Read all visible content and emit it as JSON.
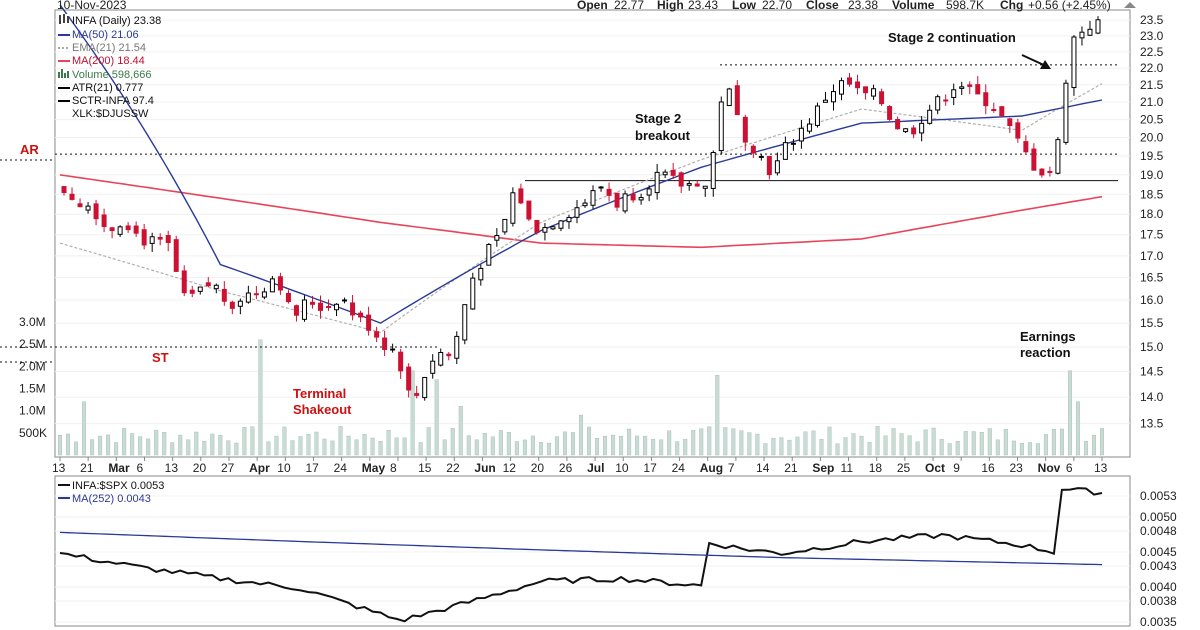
{
  "header": {
    "date": "10-Nov-2023",
    "open_label": "Open",
    "open": "22.77",
    "high_label": "High",
    "high": "23.43",
    "low_label": "Low",
    "low": "22.70",
    "close_label": "Close",
    "close": "23.38",
    "volume_label": "Volume",
    "volume": "598.7K",
    "chg_label": "Chg",
    "chg": "+0.56 (+2.45%)"
  },
  "legend": {
    "symbol": "INFA (Daily) 23.38",
    "ma50": "MA(50) 21.06",
    "ema21": "EMA(21) 21.54",
    "ma200": "MA(200) 18.44",
    "volume": "Volume 598,666",
    "atr": "ATR(21) 0.777",
    "sctr": "SCTR-INFA 97.4",
    "xlk": "XLK:$DJUSSW"
  },
  "lower_legend": {
    "ratio": "INFA:$SPX 0.0053",
    "ma252": "MA(252) 0.0043"
  },
  "annotations": {
    "ar": "AR",
    "st": "ST",
    "terminal_1": "Terminal",
    "terminal_2": "Shakeout",
    "breakout_1": "Stage 2",
    "breakout_2": "breakout",
    "continuation": "Stage 2 continuation",
    "earnings_1": "Earnings",
    "earnings_2": "reaction"
  },
  "colors": {
    "up": "#000000",
    "down": "#cc1133",
    "ma50": "#2a3a9a",
    "ema21": "#b0b0b0",
    "ma200": "#e8455a",
    "volume": "#c8dcd4",
    "ratio": "#111111",
    "ma252": "#2a3a9a",
    "annotation": "#cc1111"
  },
  "chart_data": [
    {
      "type": "candlestick",
      "ticker": "INFA",
      "y_ticks": [
        "23.5",
        "23.0",
        "22.5",
        "22.0",
        "21.5",
        "21.0",
        "20.5",
        "20.0",
        "19.5",
        "19.0",
        "18.5",
        "18.0",
        "17.5",
        "17.0",
        "16.5",
        "16.0",
        "15.5",
        "15.0",
        "14.5",
        "14.0",
        "13.5"
      ],
      "volume_ticks": [
        "3.0M",
        "2.5M",
        "2.0M",
        "1.5M",
        "1.0M",
        "500K"
      ],
      "x_ticks": [
        "13",
        "21",
        "Mar",
        "6",
        "13",
        "20",
        "27",
        "Apr",
        "10",
        "17",
        "24",
        "May",
        "8",
        "15",
        "22",
        "Jun",
        "12",
        "20",
        "26",
        "Jul",
        "10",
        "17",
        "24",
        "Aug",
        "7",
        "14",
        "21",
        "Sep",
        "11",
        "18",
        "25",
        "Oct",
        "9",
        "16",
        "23",
        "Nov",
        "6",
        "13"
      ],
      "log_scale": true,
      "ylim": [
        13.2,
        23.7
      ],
      "horizontal_levels": [
        {
          "value": 22.1,
          "style": "dotted"
        },
        {
          "value": 19.55,
          "style": "dotted"
        },
        {
          "value": 18.85,
          "style": "solid"
        },
        {
          "value": 15.0,
          "style": "dotted"
        }
      ],
      "price_path": [
        [
          0,
          18.7
        ],
        [
          5,
          18.3
        ],
        [
          8,
          18.2
        ],
        [
          12,
          17.6
        ],
        [
          16,
          17.9
        ],
        [
          20,
          17.4
        ],
        [
          24,
          17.3
        ],
        [
          28,
          17.2
        ],
        [
          30,
          16.0
        ],
        [
          34,
          16.1
        ],
        [
          38,
          16.4
        ],
        [
          42,
          15.9
        ],
        [
          46,
          16.1
        ],
        [
          50,
          16.2
        ],
        [
          54,
          16.6
        ],
        [
          58,
          15.6
        ],
        [
          62,
          16.0
        ],
        [
          66,
          15.8
        ],
        [
          70,
          16.1
        ],
        [
          74,
          15.6
        ],
        [
          78,
          15.4
        ],
        [
          80,
          15.1
        ],
        [
          84,
          14.9
        ],
        [
          88,
          13.8
        ],
        [
          90,
          14.3
        ],
        [
          94,
          14.9
        ],
        [
          98,
          14.8
        ],
        [
          100,
          15.6
        ],
        [
          103,
          16.5
        ],
        [
          106,
          17.0
        ],
        [
          110,
          17.5
        ],
        [
          112,
          18.2
        ],
        [
          114,
          18.8
        ],
        [
          116,
          17.9
        ],
        [
          120,
          17.6
        ],
        [
          124,
          17.9
        ],
        [
          128,
          18.1
        ],
        [
          132,
          18.4
        ],
        [
          136,
          18.8
        ],
        [
          138,
          18.2
        ],
        [
          142,
          18.5
        ],
        [
          146,
          18.6
        ],
        [
          148,
          19.0
        ],
        [
          152,
          18.9
        ],
        [
          156,
          18.7
        ],
        [
          160,
          18.9
        ],
        [
          162,
          18.5
        ],
        [
          164,
          20.6
        ],
        [
          166,
          21.6
        ],
        [
          170,
          20.2
        ],
        [
          174,
          19.6
        ],
        [
          178,
          19.0
        ],
        [
          180,
          19.6
        ],
        [
          184,
          20.1
        ],
        [
          188,
          20.6
        ],
        [
          192,
          21.3
        ],
        [
          196,
          21.6
        ],
        [
          200,
          21.2
        ],
        [
          204,
          21.2
        ],
        [
          206,
          20.8
        ],
        [
          208,
          20.4
        ],
        [
          212,
          20.1
        ],
        [
          216,
          20.7
        ],
        [
          220,
          21.1
        ],
        [
          224,
          21.6
        ],
        [
          228,
          21.2
        ],
        [
          232,
          21.0
        ],
        [
          236,
          20.4
        ],
        [
          240,
          19.7
        ],
        [
          244,
          19.1
        ],
        [
          248,
          19.1
        ],
        [
          250,
          20.6
        ],
        [
          252,
          22.8
        ],
        [
          256,
          23.3
        ],
        [
          260,
          23.4
        ]
      ],
      "ma50_path": [
        [
          0,
          24.0
        ],
        [
          40,
          16.8
        ],
        [
          80,
          15.5
        ],
        [
          120,
          17.6
        ],
        [
          160,
          19.2
        ],
        [
          200,
          20.4
        ],
        [
          240,
          20.6
        ],
        [
          260,
          21.06
        ]
      ],
      "ema21_path": [
        [
          0,
          17.3
        ],
        [
          40,
          16.2
        ],
        [
          80,
          15.3
        ],
        [
          120,
          17.8
        ],
        [
          160,
          19.4
        ],
        [
          200,
          20.8
        ],
        [
          240,
          20.2
        ],
        [
          260,
          21.54
        ]
      ],
      "ma200_path": [
        [
          0,
          19.0
        ],
        [
          40,
          18.4
        ],
        [
          80,
          17.8
        ],
        [
          120,
          17.3
        ],
        [
          160,
          17.2
        ],
        [
          200,
          17.4
        ],
        [
          240,
          18.1
        ],
        [
          260,
          18.44
        ]
      ],
      "last_volume": 598666
    },
    {
      "type": "line",
      "title": "INFA:$SPX",
      "y_ticks": [
        "0.0053",
        "0.0050",
        "0.0048",
        "0.0045",
        "0.0043",
        "0.0040",
        "0.0038",
        "0.0035"
      ],
      "ylim": [
        0.0035,
        0.0055
      ],
      "series": [
        {
          "name": "INFA:$SPX",
          "values_path": [
            [
              0,
              0.00448
            ],
            [
              20,
              0.00428
            ],
            [
              40,
              0.00412
            ],
            [
              60,
              0.00398
            ],
            [
              85,
              0.00352
            ],
            [
              100,
              0.00375
            ],
            [
              120,
              0.00408
            ],
            [
              140,
              0.00412
            ],
            [
              160,
              0.00402
            ],
            [
              162,
              0.00463
            ],
            [
              170,
              0.00455
            ],
            [
              180,
              0.00448
            ],
            [
              200,
              0.00465
            ],
            [
              220,
              0.00474
            ],
            [
              240,
              0.0046
            ],
            [
              248,
              0.0045
            ],
            [
              250,
              0.0054
            ],
            [
              260,
              0.00535
            ]
          ]
        },
        {
          "name": "MA(252)",
          "values_path": [
            [
              0,
              0.00478
            ],
            [
              60,
              0.00465
            ],
            [
              120,
              0.00453
            ],
            [
              180,
              0.00442
            ],
            [
              260,
              0.00432
            ]
          ]
        }
      ],
      "last_value": 0.0053
    }
  ]
}
